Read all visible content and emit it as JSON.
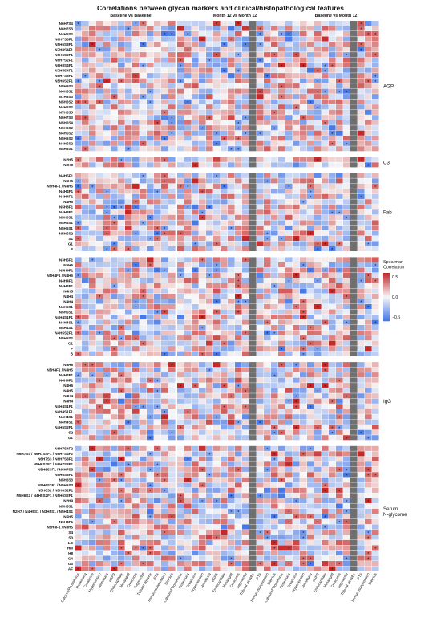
{
  "chart_data": {
    "type": "heatmap",
    "title": "Correlations between glycan markers and clinical/histopathological features",
    "panels": [
      "Baseline vs Baseline",
      "Month 12 vs Month 12",
      "Baseline vs Month 12"
    ],
    "columns": [
      "Calcium/Phosphorus",
      "Proteinuria",
      "Creatinine",
      "Hypertension",
      "Hematuria",
      "eGFR",
      "Endocapillary",
      "Mesangial",
      "Crescents",
      "Segmental",
      "Tubular atrophy",
      "IFTA",
      "Immunosuppression",
      "Steroids"
    ],
    "legend": {
      "title": "Spearman\nCorrelation",
      "ticks": [
        "0.5",
        "0.0",
        "−0.5"
      ],
      "range": [
        -0.6,
        0.6
      ]
    },
    "gray_column": 10,
    "groups": [
      {
        "label": "AGP",
        "rows": [
          "N6H7S4",
          "N6H7S3",
          "N4H5S2",
          "N6H7S3F1",
          "N5H6S3F1",
          "N7H8S4F1",
          "N5H6S2F1",
          "N6H7S2F1",
          "N6H8S4F1",
          "N7H8S4F1",
          "N6H7S3F1",
          "N5H6S2F1",
          "N8H9S4",
          "N4H5S2",
          "N7H8S3",
          "N5H6S2",
          "N4H5S2",
          "N7H8S3",
          "N6H7S3",
          "N5H6S4",
          "N6H6S2",
          "N4H5S2",
          "N5H6S2",
          "N4H5S2",
          "N4H5S1"
        ]
      },
      {
        "label": "C3",
        "rows": [
          "N2H5",
          "N2H8"
        ]
      },
      {
        "label": "Fab",
        "rows": [
          "N4H5F1",
          "N5H5",
          "N5H4F1 / N4H5",
          "N4H4F1",
          "N4H4F1",
          "N4H5",
          "N5H3F1",
          "N4H3F1",
          "N5H5S1",
          "N4H5S1",
          "N5H5S1",
          "N5H5S2",
          "S1",
          "G1",
          "F"
        ]
      },
      {
        "label": "Fc",
        "rows": [
          "N3H5F1",
          "N5H5",
          "N5H4F1",
          "N5H4F1 / N4H5",
          "N4H4F1",
          "N4H4F1",
          "N4H5",
          "N4H4",
          "N4H4",
          "N4H5S1",
          "N5H5S1",
          "N4H4S1F1",
          "N4H4S1",
          "N4H4S1",
          "N4H5S2F1",
          "N5H5S2",
          "G1",
          "F",
          "B"
        ]
      },
      {
        "label": "IgG",
        "rows": [
          "N5H5",
          "N5H4F1 / N4H5",
          "N4H4F1",
          "N4H4F1",
          "N4H5",
          "N4H5",
          "N4H4",
          "N4H4",
          "N4H4S1F1",
          "N4H4S1F1",
          "N4H4S1",
          "N4H4S1",
          "N4H5S2F1",
          "S2",
          "G1"
        ]
      },
      {
        "label": "Serum\nN-glycome",
        "rows": [
          "N6H7S4F2",
          "N6H7S4 / N6H7S4F1 / N6H7S4F2",
          "N6H7S3 / N6H7S3F1",
          "N5H6S3F2 / N6H7S3F1",
          "N5H6S3F1 / N6H7S3",
          "N5H6S3F1",
          "N5H6S3",
          "N5H6S2F1 / N5H6S3",
          "N5H6S2 / N5H6S2F1",
          "N5H6S2 / N4H5S2F1 / N5H6S2F1",
          "N2H9",
          "N5H5S1",
          "N2H7 / N4H5S1 / N3H5S1 / N5H4S1",
          "N5H5",
          "N5H4F1",
          "N5H3F1 / N3H5",
          "S4",
          "S3",
          "LB",
          "HM",
          "H8",
          "G4",
          "G3",
          "AF"
        ]
      }
    ]
  }
}
